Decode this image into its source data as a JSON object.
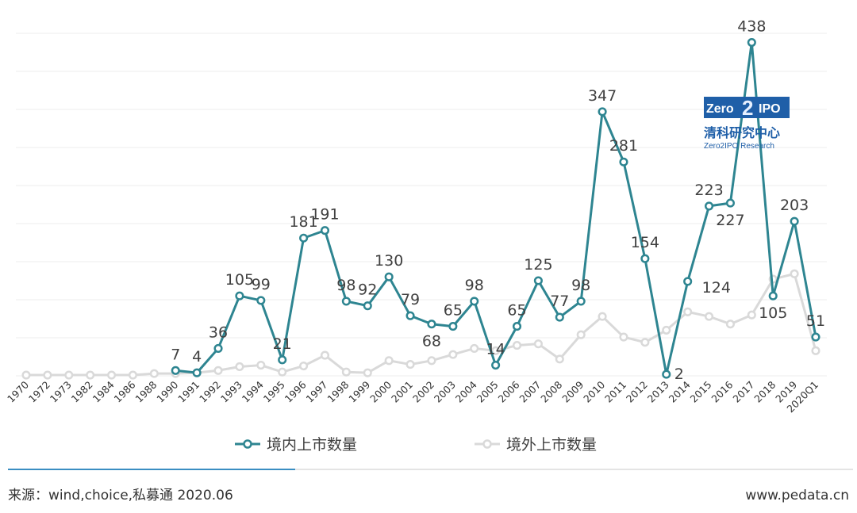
{
  "chart_data": {
    "type": "line",
    "categories": [
      "1970",
      "1972",
      "1973",
      "1982",
      "1984",
      "1986",
      "1988",
      "1990",
      "1991",
      "1992",
      "1993",
      "1994",
      "1995",
      "1996",
      "1997",
      "1998",
      "1999",
      "2000",
      "2001",
      "2002",
      "2003",
      "2004",
      "2005",
      "2006",
      "2007",
      "2008",
      "2009",
      "2010",
      "2011",
      "2012",
      "2013",
      "2014",
      "2015",
      "2016",
      "2017",
      "2018",
      "2019",
      "2020Q1"
    ],
    "series": [
      {
        "name": "境内上市数量",
        "color": "#2e8591",
        "values": [
          null,
          null,
          null,
          null,
          null,
          null,
          null,
          7,
          4,
          36,
          105,
          99,
          21,
          181,
          191,
          98,
          92,
          130,
          79,
          68,
          65,
          98,
          14,
          65,
          125,
          77,
          98,
          347,
          281,
          154,
          2,
          124,
          223,
          227,
          438,
          105,
          203,
          51
        ],
        "labels": [
          "",
          "",
          "",
          "",
          "",
          "",
          "",
          "7",
          "4",
          "36",
          "105",
          "99",
          "21",
          "181",
          "191",
          "98",
          "92",
          "130",
          "79",
          "68",
          "65",
          "98",
          "14",
          "65",
          "125",
          "77",
          "98",
          "347",
          "281",
          "154",
          "2",
          "124",
          "223",
          "227",
          "438",
          "105",
          "203",
          "51"
        ]
      },
      {
        "name": "境外上市数量",
        "color": "#d9d9d9",
        "values": [
          1,
          1,
          1,
          1,
          1,
          1,
          3,
          3,
          4,
          7,
          12,
          14,
          5,
          13,
          27,
          5,
          4,
          20,
          15,
          20,
          28,
          36,
          33,
          40,
          42,
          22,
          54,
          78,
          51,
          44,
          60,
          84,
          78,
          68,
          80,
          127,
          134,
          33
        ]
      }
    ],
    "ylim": [
      0,
      450
    ],
    "grid": true,
    "legend_position": "bottom"
  },
  "footer": {
    "source": "来源：wind,choice,私募通 2020.06",
    "website": "www.pedata.cn"
  },
  "logo": {
    "box_left": "Zero",
    "box_num": "2",
    "box_right": "IPO",
    "cn": "清科研究中心",
    "en": "Zero2IPO Research"
  }
}
